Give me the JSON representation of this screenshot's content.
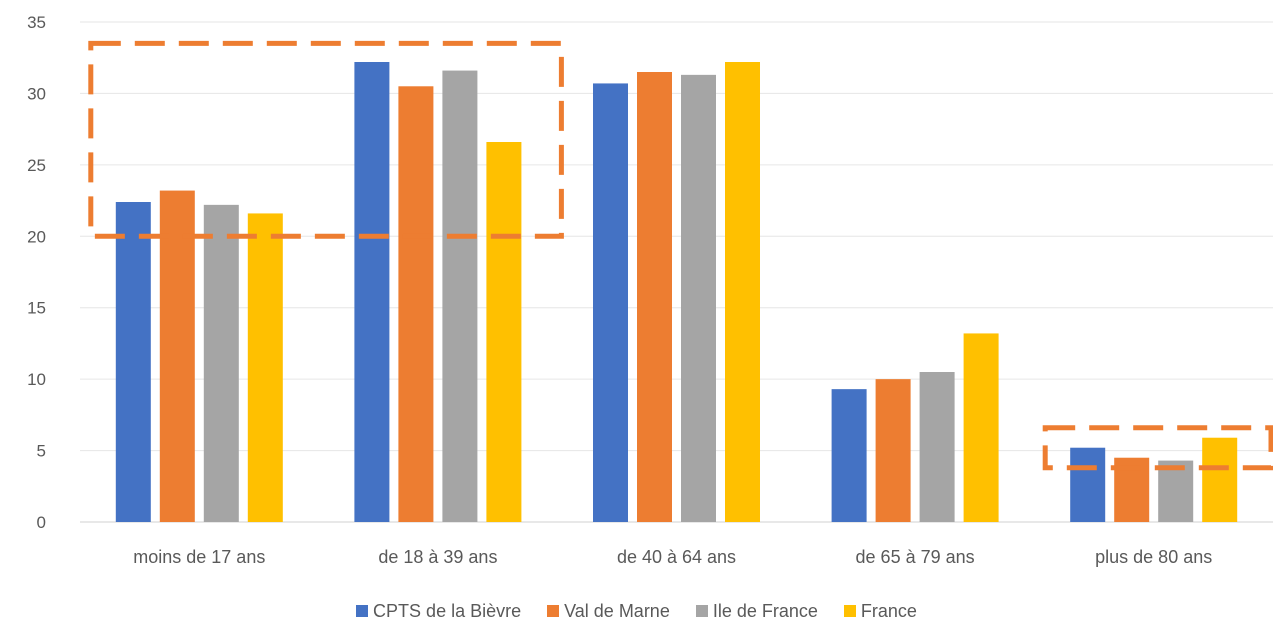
{
  "chart_data": {
    "type": "bar",
    "categories": [
      "moins de 17 ans",
      "de 18 à 39 ans",
      "de 40 à 64 ans",
      "de 65 à 79 ans",
      "plus de 80 ans"
    ],
    "series": [
      {
        "name": "CPTS de la Bièvre",
        "color": "#4472C4",
        "values": [
          22.4,
          32.2,
          30.7,
          9.3,
          5.2
        ]
      },
      {
        "name": "Val de Marne",
        "color": "#ED7D31",
        "values": [
          23.2,
          30.5,
          31.5,
          10.0,
          4.5
        ]
      },
      {
        "name": "Ile de France",
        "color": "#A5A5A5",
        "values": [
          22.2,
          31.6,
          31.3,
          10.5,
          4.3
        ]
      },
      {
        "name": "France",
        "color": "#FFC000",
        "values": [
          21.6,
          26.6,
          32.2,
          13.2,
          5.9
        ]
      }
    ],
    "title": "",
    "xlabel": "",
    "ylabel": "",
    "ylim": [
      0,
      35
    ],
    "yticks": [
      0,
      5,
      10,
      15,
      20,
      25,
      30,
      35
    ],
    "grid": true,
    "legend_position": "bottom",
    "annotations": [
      {
        "type": "dashed-box",
        "color": "#ED7D31",
        "category_range": [
          "moins de 17 ans",
          "de 18 à 39 ans"
        ],
        "y_range": [
          20,
          33.5
        ]
      },
      {
        "type": "dashed-box",
        "color": "#ED7D31",
        "category_range": [
          "plus de 80 ans",
          "plus de 80 ans"
        ],
        "y_range": [
          3.8,
          6.6
        ]
      }
    ]
  }
}
